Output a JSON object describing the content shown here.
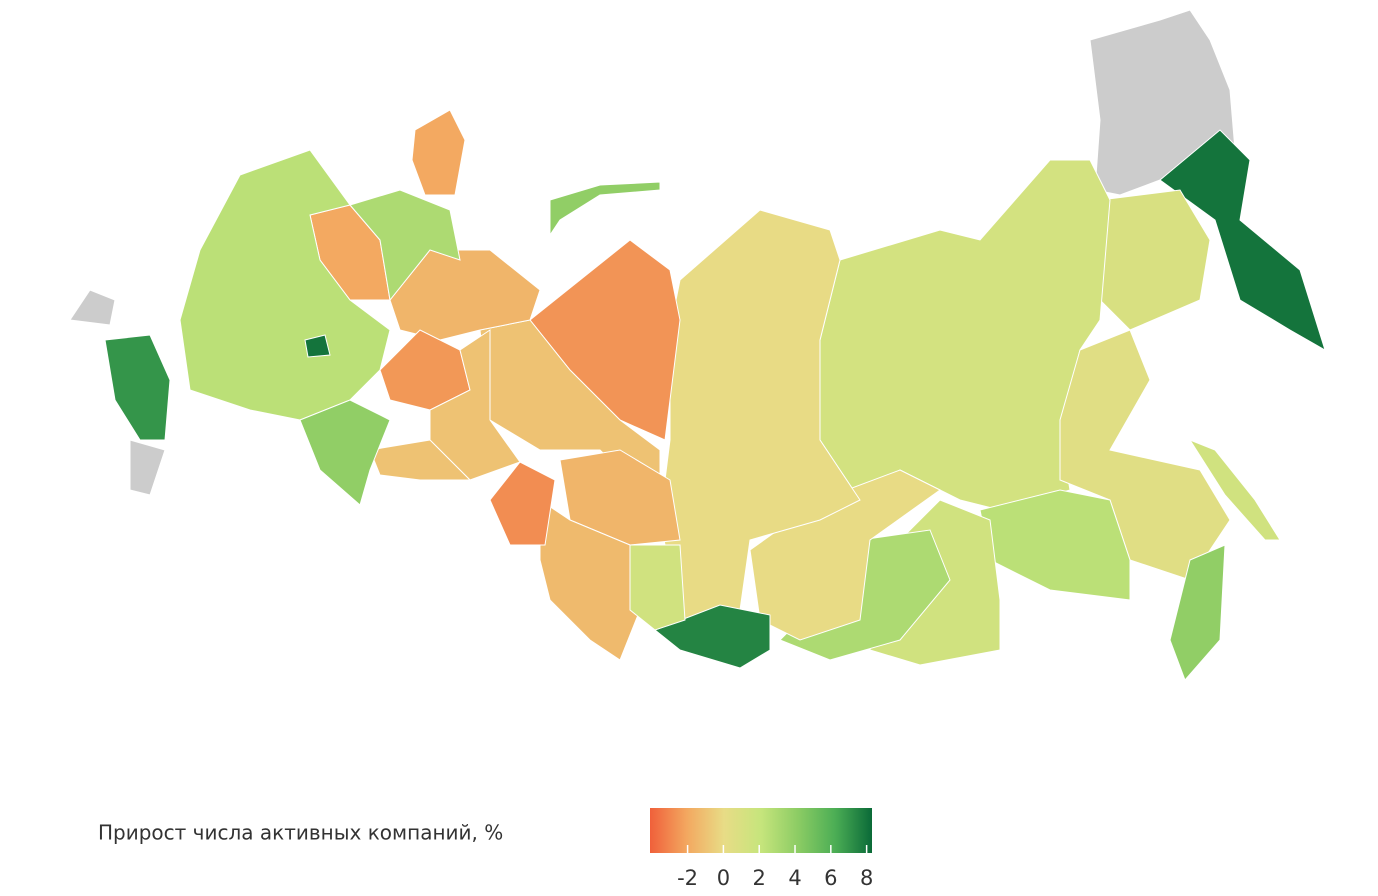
{
  "chart_data": {
    "type": "choropleth",
    "legend_title": "Прирост числа активных компаний, %",
    "values": [
      null,
      8,
      1,
      1.3,
      0.5,
      4,
      2.5,
      1.5,
      3,
      0,
      0,
      7.5,
      -2.6,
      -1,
      -1.5,
      -1.3,
      -2.8,
      -1.5,
      -2,
      3,
      -2.5,
      -1,
      -1,
      2.5,
      4,
      7,
      null,
      null,
      -2,
      8,
      1.5,
      4,
      1.5
    ],
    "colorscale": [
      "#f0603a",
      "#f3a860",
      "#e8dc86",
      "#c6e57c",
      "#8ccc64",
      "#4cae55",
      "#0a6a38"
    ],
    "clim": [
      -4.1,
      8.3
    ],
    "ticks": [
      -2,
      0,
      2,
      4,
      6,
      8
    ],
    "missing_color": "#cccccc"
  }
}
